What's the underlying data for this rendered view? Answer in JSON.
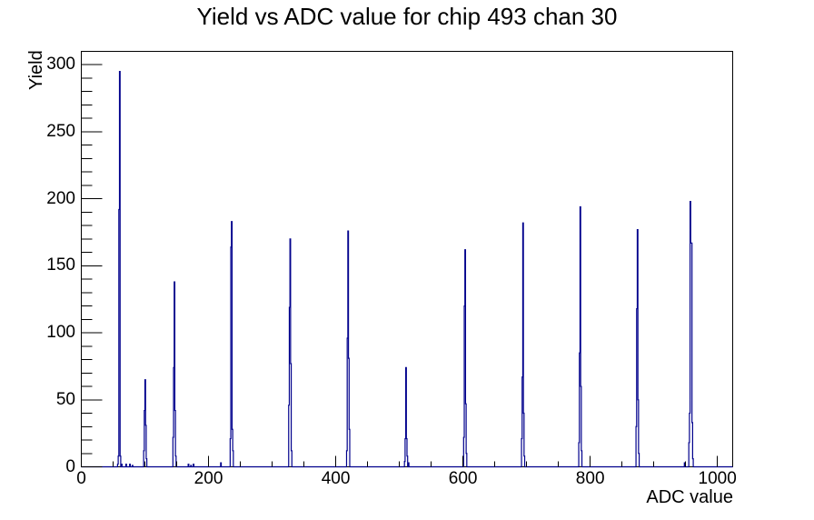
{
  "chart_data": {
    "type": "histogram",
    "title": "Yield vs ADC value for chip 493 chan 30",
    "xlabel": "ADC value",
    "ylabel": "Yield",
    "xlim": [
      0,
      1024
    ],
    "ylim": [
      0,
      310
    ],
    "x_tick_labels": [
      0,
      200,
      400,
      600,
      800,
      1000
    ],
    "x_minor_tick_step": 50,
    "y_tick_labels": [
      0,
      50,
      100,
      150,
      200,
      250,
      300
    ],
    "y_minor_tick_step": 10,
    "grid": false,
    "legend": "none",
    "line_color": "#00008c",
    "frame_color": "#000000",
    "background_color": "#ffffff",
    "peaks": [
      {
        "adc": 60,
        "yield": 295
      },
      {
        "adc": 100,
        "yield": 65
      },
      {
        "adc": 146,
        "yield": 138
      },
      {
        "adc": 236,
        "yield": 183
      },
      {
        "adc": 328,
        "yield": 170
      },
      {
        "adc": 419,
        "yield": 176
      },
      {
        "adc": 510,
        "yield": 74
      },
      {
        "adc": 603,
        "yield": 162
      },
      {
        "adc": 694,
        "yield": 182
      },
      {
        "adc": 784,
        "yield": 194
      },
      {
        "adc": 874,
        "yield": 177
      },
      {
        "adc": 957,
        "yield": 198
      }
    ],
    "bins": [
      [
        57,
        2
      ],
      [
        58,
        8
      ],
      [
        59,
        192
      ],
      [
        60,
        295
      ],
      [
        61,
        8
      ],
      [
        63,
        2
      ],
      [
        70,
        2
      ],
      [
        76,
        2
      ],
      [
        80,
        1
      ],
      [
        98,
        12
      ],
      [
        99,
        42
      ],
      [
        100,
        65
      ],
      [
        101,
        31
      ],
      [
        102,
        6
      ],
      [
        144,
        22
      ],
      [
        145,
        74
      ],
      [
        146,
        138
      ],
      [
        147,
        42
      ],
      [
        148,
        8
      ],
      [
        168,
        2
      ],
      [
        172,
        1
      ],
      [
        176,
        2
      ],
      [
        219,
        3
      ],
      [
        234,
        21
      ],
      [
        235,
        164
      ],
      [
        236,
        183
      ],
      [
        237,
        28
      ],
      [
        238,
        12
      ],
      [
        326,
        46
      ],
      [
        327,
        119
      ],
      [
        328,
        170
      ],
      [
        329,
        77
      ],
      [
        330,
        12
      ],
      [
        417,
        12
      ],
      [
        418,
        96
      ],
      [
        419,
        176
      ],
      [
        420,
        81
      ],
      [
        421,
        28
      ],
      [
        508,
        4
      ],
      [
        509,
        21
      ],
      [
        510,
        74
      ],
      [
        511,
        21
      ],
      [
        512,
        8
      ],
      [
        514,
        3
      ],
      [
        601,
        22
      ],
      [
        602,
        120
      ],
      [
        603,
        162
      ],
      [
        604,
        47
      ],
      [
        605,
        10
      ],
      [
        692,
        21
      ],
      [
        693,
        67
      ],
      [
        694,
        182
      ],
      [
        695,
        40
      ],
      [
        696,
        8
      ],
      [
        782,
        18
      ],
      [
        783,
        85
      ],
      [
        784,
        194
      ],
      [
        785,
        60
      ],
      [
        786,
        12
      ],
      [
        872,
        30
      ],
      [
        873,
        118
      ],
      [
        874,
        177
      ],
      [
        875,
        50
      ],
      [
        876,
        10
      ],
      [
        948,
        3
      ],
      [
        955,
        18
      ],
      [
        956,
        40
      ],
      [
        957,
        198
      ],
      [
        958,
        167
      ],
      [
        959,
        167
      ],
      [
        960,
        33
      ],
      [
        961,
        6
      ]
    ]
  }
}
